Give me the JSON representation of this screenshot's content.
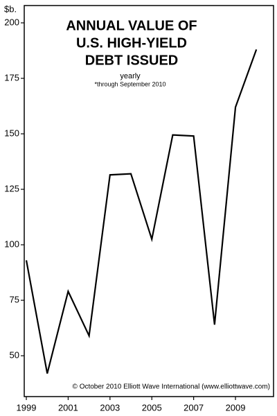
{
  "chart_data": {
    "type": "line",
    "title": [
      "ANNUAL VALUE OF",
      "U.S. HIGH-YIELD",
      "DEBT ISSUED"
    ],
    "subtitle": "yearly",
    "note": "*through September 2010",
    "y_label": "$b.",
    "source": "© October 2010 Elliott Wave International (www.elliottwave.com)",
    "x": [
      1999,
      2000,
      2001,
      2002,
      2003,
      2004,
      2005,
      2006,
      2007,
      2008,
      2009,
      2010
    ],
    "series": [
      {
        "color": "#000000",
        "values": [
          93,
          42,
          79,
          59,
          131.5,
          132,
          102.5,
          149.5,
          149,
          64,
          162,
          188
        ]
      }
    ],
    "xlim": [
      1998.9,
      2010.82
    ],
    "xticks": [
      1999,
      2001,
      2003,
      2005,
      2007,
      2009
    ],
    "ylim": [
      31.6,
      207.8
    ],
    "yticks": [
      50,
      75,
      100,
      125,
      150,
      175,
      200
    ]
  }
}
